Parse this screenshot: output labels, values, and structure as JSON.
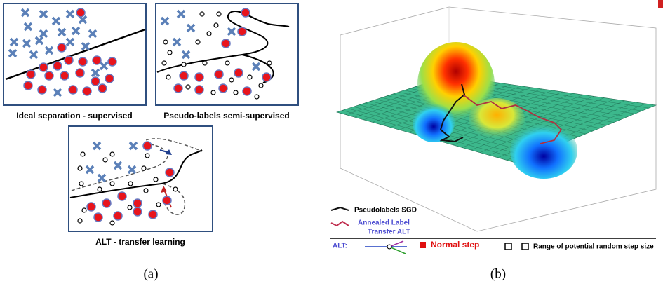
{
  "panel_a": {
    "subfigures": [
      {
        "caption": "Ideal separation - supervised"
      },
      {
        "caption": "Pseudo-labels semi-supervised"
      },
      {
        "caption": "ALT - transfer learning"
      }
    ],
    "label": "(a)"
  },
  "panel_b": {
    "legend": {
      "pseudolabels": "Pseudolabels SGD",
      "annealed_line1": "Annealed Label",
      "annealed_line2": "Transfer  ALT",
      "alt_prefix": "ALT:",
      "normal_step": "Normal step",
      "range": "Range of potential random step size"
    },
    "label": "(b)"
  }
}
